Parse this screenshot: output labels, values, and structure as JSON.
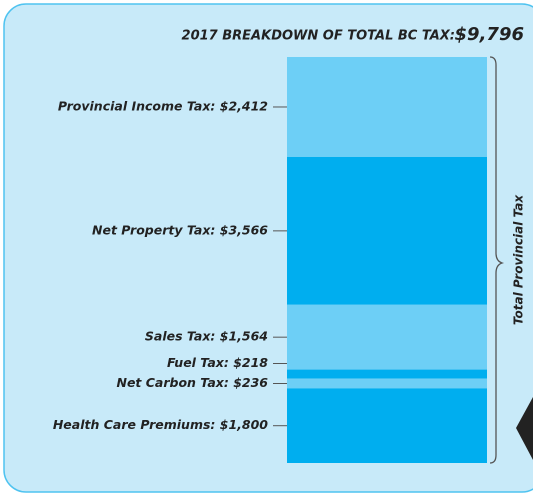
{
  "chart_data": {
    "type": "stacked-column",
    "title": "2017 BREAKDOWN OF TOTAL BC TAX:",
    "total_label": "$9,796",
    "brace_label": "Total Provincial Tax",
    "categories": [
      "Provincial Income Tax: $2,412",
      "Net Property Tax: $3,566",
      "Sales Tax: $1,564",
      "Fuel Tax: $218",
      "Net Carbon Tax: $236",
      "Health Care Premiums: $1,800"
    ],
    "values": [
      2412,
      3566,
      1564,
      218,
      236,
      1800
    ],
    "colors": [
      "#6dcff6",
      "#00aeef",
      "#6dcff6",
      "#00aeef",
      "#6dcff6",
      "#00aeef"
    ],
    "ylim": [
      0,
      9796
    ]
  }
}
